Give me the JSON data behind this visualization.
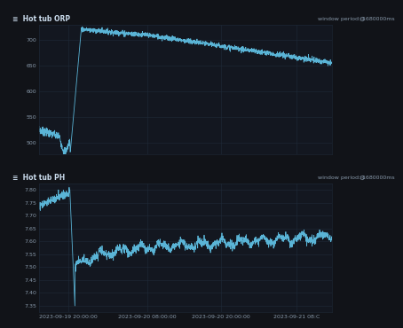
{
  "bg_color": "#111318",
  "plot_bg": "#131720",
  "line_color": "#5ab4d6",
  "grid_color": "#1f2a38",
  "text_color": "#8899aa",
  "title_color": "#ccddee",
  "header_bg": "#0e1219",
  "title_orp": "Hot tub ORP",
  "title_ph": "Hot tub PH",
  "window_label": "window period: 1680000ms",
  "x_tick_labels": [
    "2023-09-19 20:00:00",
    "2023-09-20 08:00:00",
    "2023-09-20 20:00:00",
    "2023-09-21 08:C"
  ],
  "orp_yticks": [
    500,
    550,
    600,
    650,
    700
  ],
  "orp_ylim": [
    478,
    728
  ],
  "ph_yticks": [
    7.35,
    7.4,
    7.45,
    7.5,
    7.55,
    7.6,
    7.65,
    7.7,
    7.75,
    7.8
  ],
  "ph_ylim": [
    7.325,
    7.825
  ],
  "spike_t": 0.105,
  "n_points": 1800
}
